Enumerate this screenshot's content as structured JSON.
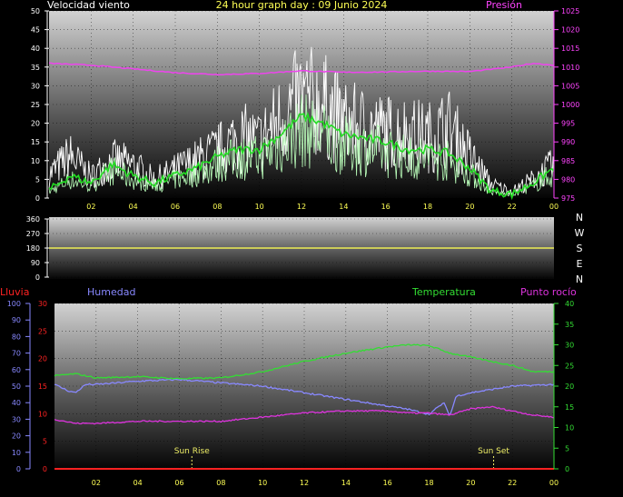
{
  "chart_data": [
    {
      "id": "wind",
      "type": "line",
      "title": "24 hour graph day : 09 Junio 2024",
      "left_label": "Velocidad viento",
      "right_label": "Presión",
      "ylim_left": [
        0,
        50
      ],
      "yticks_left": [
        "0",
        "5",
        "10",
        "15",
        "20",
        "25",
        "30",
        "35",
        "40",
        "45",
        "50"
      ],
      "ylim_right": [
        975,
        1025
      ],
      "yticks_right": [
        "975",
        "980",
        "985",
        "990",
        "995",
        "1000",
        "1005",
        "1010",
        "1015",
        "1020",
        "1025"
      ],
      "xlim": [
        0,
        24
      ],
      "xticks": [
        "02",
        "04",
        "06",
        "08",
        "10",
        "12",
        "14",
        "16",
        "18",
        "20",
        "22",
        "00"
      ],
      "colors": {
        "gust": "#ffffff",
        "avg": "#22dd22",
        "speed": "#bbffbb",
        "pressure": "#ee44ee",
        "left_axis": "#ffffff",
        "right_axis": "#ff44ff",
        "title": "#ffff55"
      },
      "gust_envelope": {
        "x": [
          0,
          1,
          2,
          3,
          4,
          5,
          6,
          7,
          8,
          9,
          10,
          11,
          12,
          13,
          14,
          15,
          16,
          17,
          18,
          19,
          20,
          21,
          22,
          23,
          24
        ],
        "y": [
          10,
          18,
          9,
          16,
          14,
          8,
          12,
          16,
          20,
          26,
          24,
          34,
          42,
          40,
          32,
          30,
          28,
          28,
          26,
          30,
          18,
          6,
          3,
          8,
          14
        ]
      },
      "average": {
        "x": [
          0,
          1,
          2,
          3,
          4,
          5,
          6,
          7,
          8,
          9,
          10,
          11,
          12,
          13,
          14,
          15,
          16,
          17,
          18,
          19,
          20,
          21,
          22,
          23,
          24
        ],
        "y": [
          2,
          6,
          4,
          9,
          6,
          4,
          6,
          8,
          11,
          13,
          13,
          17,
          22,
          20,
          17,
          16,
          15,
          13,
          13,
          12,
          8,
          2,
          1,
          4,
          8
        ]
      },
      "pressure": {
        "x": [
          0,
          2,
          4,
          6,
          8,
          10,
          12,
          14,
          16,
          18,
          20,
          22,
          23,
          24
        ],
        "y": [
          1011,
          1010.5,
          1009.5,
          1008.5,
          1008,
          1008.3,
          1009,
          1008.6,
          1008.7,
          1008.9,
          1008.8,
          1010,
          1011,
          1010.5
        ]
      }
    },
    {
      "id": "direction",
      "type": "line",
      "ylim": [
        0,
        360
      ],
      "yticks": [
        "0",
        "90",
        "180",
        "270",
        "360"
      ],
      "compass": [
        "N",
        "W",
        "S",
        "E",
        "N"
      ],
      "xlim": [
        0,
        24
      ],
      "colors": {
        "line": "#eeee55",
        "axis": "#ffffff",
        "compass": "#ffffff"
      },
      "direction": {
        "x": [
          0,
          24
        ],
        "y": [
          180,
          180
        ]
      }
    },
    {
      "id": "temp_hum",
      "type": "line",
      "labels": {
        "rain": "Lluvia",
        "humidity": "Humedad",
        "temperature": "Temperatura",
        "dew": "Punto rocío"
      },
      "ylim_humidity": [
        0,
        100
      ],
      "yticks_humidity": [
        "0",
        "10",
        "20",
        "30",
        "40",
        "50",
        "60",
        "70",
        "80",
        "90",
        "100"
      ],
      "ylim_rain": [
        0,
        30
      ],
      "yticks_rain": [
        "0",
        "5",
        "10",
        "15",
        "20",
        "25",
        "30"
      ],
      "ylim_temp": [
        0,
        40
      ],
      "yticks_temp": [
        "0",
        "5",
        "10",
        "15",
        "20",
        "25",
        "30",
        "35",
        "40"
      ],
      "xlim": [
        0,
        24
      ],
      "xticks": [
        "02",
        "04",
        "06",
        "08",
        "10",
        "12",
        "14",
        "16",
        "18",
        "20",
        "22",
        "00"
      ],
      "colors": {
        "rain": "#ff2222",
        "humidity": "#8888ff",
        "temperature": "#33dd33",
        "dew": "#dd33dd",
        "sun": "#eeee66"
      },
      "temperature": {
        "x": [
          0,
          1,
          2,
          4,
          6,
          8,
          10,
          12,
          14,
          16,
          17,
          18,
          19,
          20,
          22,
          23,
          24
        ],
        "y": [
          22.5,
          23,
          22,
          22.3,
          21.8,
          22,
          23.5,
          26,
          28,
          29.5,
          30,
          29.8,
          28,
          27,
          25,
          23.5,
          23.5
        ]
      },
      "humidity": {
        "x": [
          0,
          0.7,
          1,
          1.5,
          2,
          4,
          6,
          8,
          10,
          12,
          14,
          16,
          17,
          18,
          18.7,
          19,
          19.3,
          20,
          22,
          24
        ],
        "y": [
          51,
          47,
          46,
          51,
          51,
          53,
          54,
          52,
          50,
          46,
          42,
          38,
          36,
          33,
          40,
          32,
          44,
          46,
          50,
          51
        ]
      },
      "dew_point": {
        "x": [
          0,
          1,
          2,
          4,
          6,
          8,
          10,
          12,
          14,
          16,
          17,
          18,
          19,
          20,
          21,
          22,
          23,
          24
        ],
        "y": [
          12,
          11,
          11,
          11.5,
          11.5,
          11.5,
          12.5,
          13.5,
          14,
          14,
          13.5,
          13.5,
          13,
          14.5,
          15,
          14,
          13,
          12.5
        ]
      },
      "rain": {
        "x": [
          0,
          24
        ],
        "y": [
          0,
          0
        ]
      },
      "sun_rise": {
        "label": "Sun Rise",
        "hour": 6.6
      },
      "sun_set": {
        "label": "Sun Set",
        "hour": 21.1
      }
    }
  ]
}
